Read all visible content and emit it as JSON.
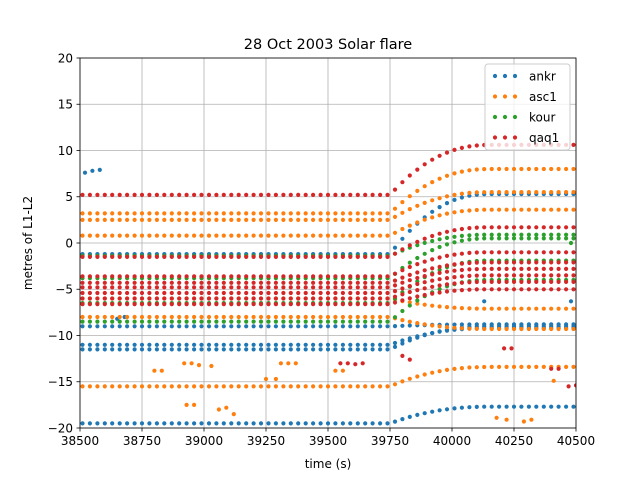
{
  "chart_data": {
    "type": "scatter",
    "title": "28 Oct 2003 Solar flare",
    "xlabel": "time (s)",
    "ylabel": "metres of L1-L2",
    "xlim": [
      38500,
      40500
    ],
    "ylim": [
      -20,
      20
    ],
    "xticks": [
      38500,
      38750,
      39000,
      39250,
      39500,
      39750,
      40000,
      40250,
      40500
    ],
    "yticks": [
      -20,
      -15,
      -10,
      -5,
      0,
      5,
      10,
      15,
      20
    ],
    "grid": true,
    "legend_position": "top-right",
    "flare_start": 39750,
    "flare_end": 40150,
    "x_step": 30,
    "series": [
      {
        "name": "ankr",
        "color": "#1f77b4",
        "tracks": [
          {
            "y0": -19.5,
            "shift": 1.8
          },
          {
            "y0": -11.5,
            "shift": 2.5
          },
          {
            "y0": -11.0,
            "shift": 1.8
          },
          {
            "y0": -9.0,
            "shift": 0.2
          },
          {
            "y0": -1.2,
            "shift": 6.5
          }
        ],
        "fragments": [
          {
            "x": [
              38520,
              38550,
              38580
            ],
            "y": [
              7.6,
              7.8,
              7.9
            ]
          },
          {
            "x": [
              38650,
              38680
            ],
            "y": [
              -8.2,
              -8.0
            ]
          },
          {
            "x": [
              40130
            ],
            "y": [
              -6.3
            ]
          },
          {
            "x": [
              40480
            ],
            "y": [
              -6.3
            ]
          }
        ]
      },
      {
        "name": "asc1",
        "color": "#ff7f0e",
        "tracks": [
          {
            "y0": -15.5,
            "shift": 2.1
          },
          {
            "y0": -8.0,
            "shift": -1.3
          },
          {
            "y0": -6.0,
            "shift": -1.1
          },
          {
            "y0": 0.8,
            "shift": 2.8
          },
          {
            "y0": 2.5,
            "shift": 3.0
          },
          {
            "y0": 3.2,
            "shift": 4.8
          }
        ],
        "fragments": [
          {
            "x": [
              38800,
              38830
            ],
            "y": [
              -13.8,
              -13.8
            ]
          },
          {
            "x": [
              38920,
              38950,
              38980,
              39030
            ],
            "y": [
              -13.0,
              -13.0,
              -13.2,
              -13.3
            ]
          },
          {
            "x": [
              38930,
              38960
            ],
            "y": [
              -17.5,
              -17.5
            ]
          },
          {
            "x": [
              39060,
              39090,
              39120
            ],
            "y": [
              -18.0,
              -17.8,
              -18.5
            ]
          },
          {
            "x": [
              39250,
              39290
            ],
            "y": [
              -14.7,
              -14.7
            ]
          },
          {
            "x": [
              39310,
              39340,
              39370
            ],
            "y": [
              -13.0,
              -13.0,
              -13.0
            ]
          },
          {
            "x": [
              39530,
              39560
            ],
            "y": [
              -13.8,
              -13.8
            ]
          },
          {
            "x": [
              40180,
              40220
            ],
            "y": [
              -18.9,
              -19.1
            ]
          },
          {
            "x": [
              40290,
              40320
            ],
            "y": [
              -19.3,
              -19.1
            ]
          },
          {
            "x": [
              40410
            ],
            "y": [
              -14.9
            ]
          }
        ]
      },
      {
        "name": "kour",
        "color": "#2ca02c",
        "tracks": [
          {
            "y0": -8.5,
            "shift": 4.5
          },
          {
            "y0": -6.5,
            "shift": 4.6
          },
          {
            "y0": -3.8,
            "shift": 4.3
          },
          {
            "y0": -1.4,
            "shift": 2.3
          }
        ],
        "fragments": [
          {
            "x": [
              40480
            ],
            "y": [
              0.0
            ]
          }
        ]
      },
      {
        "name": "qaq1",
        "color": "#d62728",
        "tracks": [
          {
            "y0": -6.6,
            "shift": 1.6
          },
          {
            "y0": -6.0,
            "shift": 1.8
          },
          {
            "y0": -5.4,
            "shift": 1.9
          },
          {
            "y0": -4.8,
            "shift": 2.0
          },
          {
            "y0": -4.3,
            "shift": 2.2
          },
          {
            "y0": -3.6,
            "shift": 2.6
          },
          {
            "y0": -1.5,
            "shift": 3.2
          },
          {
            "y0": 5.2,
            "shift": 5.4
          }
        ],
        "fragments": [
          {
            "x": [
              39550,
              39580,
              39610,
              39640
            ],
            "y": [
              -13.0,
              -13.0,
              -13.1,
              -13.0
            ]
          },
          {
            "x": [
              39800,
              39830
            ],
            "y": [
              -12.2,
              -12.6
            ]
          },
          {
            "x": [
              40210,
              40240
            ],
            "y": [
              -11.4,
              -11.4
            ]
          },
          {
            "x": [
              40400,
              40430
            ],
            "y": [
              -13.6,
              -13.6
            ]
          },
          {
            "x": [
              40470,
              40500
            ],
            "y": [
              -15.5,
              -15.4
            ]
          }
        ]
      }
    ]
  }
}
